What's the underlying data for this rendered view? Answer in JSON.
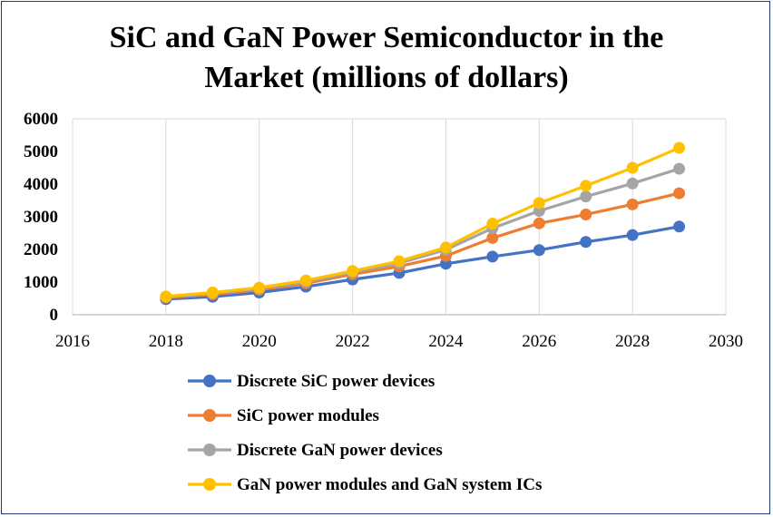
{
  "chart_data": {
    "type": "line",
    "title_lines": [
      "SiC and GaN Power Semiconductor in the",
      "Market (millions of dollars)"
    ],
    "xlim": [
      2016,
      2030
    ],
    "ylim": [
      0,
      6000
    ],
    "x_ticks": [
      2016,
      2018,
      2020,
      2022,
      2024,
      2026,
      2028,
      2030
    ],
    "y_ticks": [
      0,
      1000,
      2000,
      3000,
      4000,
      5000,
      6000
    ],
    "grid": "vertical",
    "legend_position": "bottom",
    "x": [
      2018,
      2019,
      2020,
      2021,
      2022,
      2023,
      2024,
      2025,
      2026,
      2027,
      2028,
      2029
    ],
    "series": [
      {
        "name": "Discrete SiC power devices",
        "color": "#4472C4",
        "values": [
          480,
          550,
          680,
          860,
          1080,
          1280,
          1560,
          1780,
          1980,
          2230,
          2440,
          2700
        ]
      },
      {
        "name": "SiC power modules",
        "color": "#ED7D31",
        "values": [
          520,
          620,
          760,
          960,
          1240,
          1480,
          1800,
          2350,
          2800,
          3070,
          3380,
          3720
        ]
      },
      {
        "name": "Discrete GaN power devices",
        "color": "#A5A5A5",
        "values": [
          540,
          650,
          800,
          1010,
          1300,
          1580,
          1990,
          2650,
          3180,
          3620,
          4020,
          4470
        ]
      },
      {
        "name": "GaN power modules and GaN system ICs",
        "color": "#FFC000",
        "values": [
          560,
          680,
          830,
          1050,
          1340,
          1640,
          2060,
          2790,
          3420,
          3950,
          4500,
          5110
        ]
      }
    ]
  }
}
